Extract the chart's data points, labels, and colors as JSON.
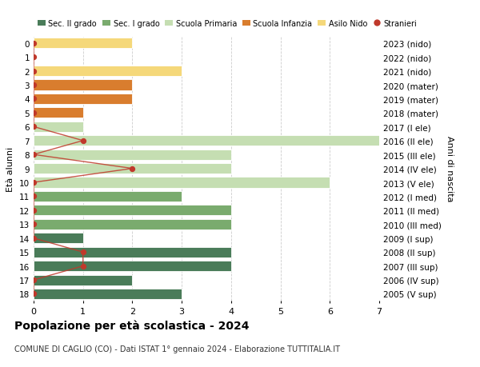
{
  "ages": [
    18,
    17,
    16,
    15,
    14,
    13,
    12,
    11,
    10,
    9,
    8,
    7,
    6,
    5,
    4,
    3,
    2,
    1,
    0
  ],
  "years": [
    "2005 (V sup)",
    "2006 (IV sup)",
    "2007 (III sup)",
    "2008 (II sup)",
    "2009 (I sup)",
    "2010 (III med)",
    "2011 (II med)",
    "2012 (I med)",
    "2013 (V ele)",
    "2014 (IV ele)",
    "2015 (III ele)",
    "2016 (II ele)",
    "2017 (I ele)",
    "2018 (mater)",
    "2019 (mater)",
    "2020 (mater)",
    "2021 (nido)",
    "2022 (nido)",
    "2023 (nido)"
  ],
  "bar_values": [
    3,
    2,
    4,
    4,
    1,
    4,
    4,
    3,
    6,
    4,
    4,
    7,
    1,
    1,
    2,
    2,
    3,
    0,
    2
  ],
  "bar_colors": [
    "#4a7c59",
    "#4a7c59",
    "#4a7c59",
    "#4a7c59",
    "#4a7c59",
    "#7aab6e",
    "#7aab6e",
    "#7aab6e",
    "#c5deb2",
    "#c5deb2",
    "#c5deb2",
    "#c5deb2",
    "#c5deb2",
    "#d97d2e",
    "#d97d2e",
    "#d97d2e",
    "#f5d87a",
    "#f5d87a",
    "#f5d87a"
  ],
  "stranieri_values": [
    0,
    0,
    1,
    1,
    0,
    0,
    0,
    0,
    0,
    2,
    0,
    1,
    0,
    0,
    0,
    0,
    0,
    0,
    0
  ],
  "legend_labels": [
    "Sec. II grado",
    "Sec. I grado",
    "Scuola Primaria",
    "Scuola Infanzia",
    "Asilo Nido",
    "Stranieri"
  ],
  "legend_colors": [
    "#4a7c59",
    "#7aab6e",
    "#c5deb2",
    "#d97d2e",
    "#f5d87a",
    "#c0392b"
  ],
  "title": "Popolazione per età scolastica - 2024",
  "subtitle": "COMUNE DI CAGLIO (CO) - Dati ISTAT 1° gennaio 2024 - Elaborazione TUTTITALIA.IT",
  "ylabel_left": "Età alunni",
  "ylabel_right": "Anni di nascita",
  "xlim": [
    0,
    7
  ],
  "background_color": "#ffffff",
  "bar_edge_color": "white",
  "stranieri_color": "#c0392b",
  "grid_color": "#cccccc"
}
